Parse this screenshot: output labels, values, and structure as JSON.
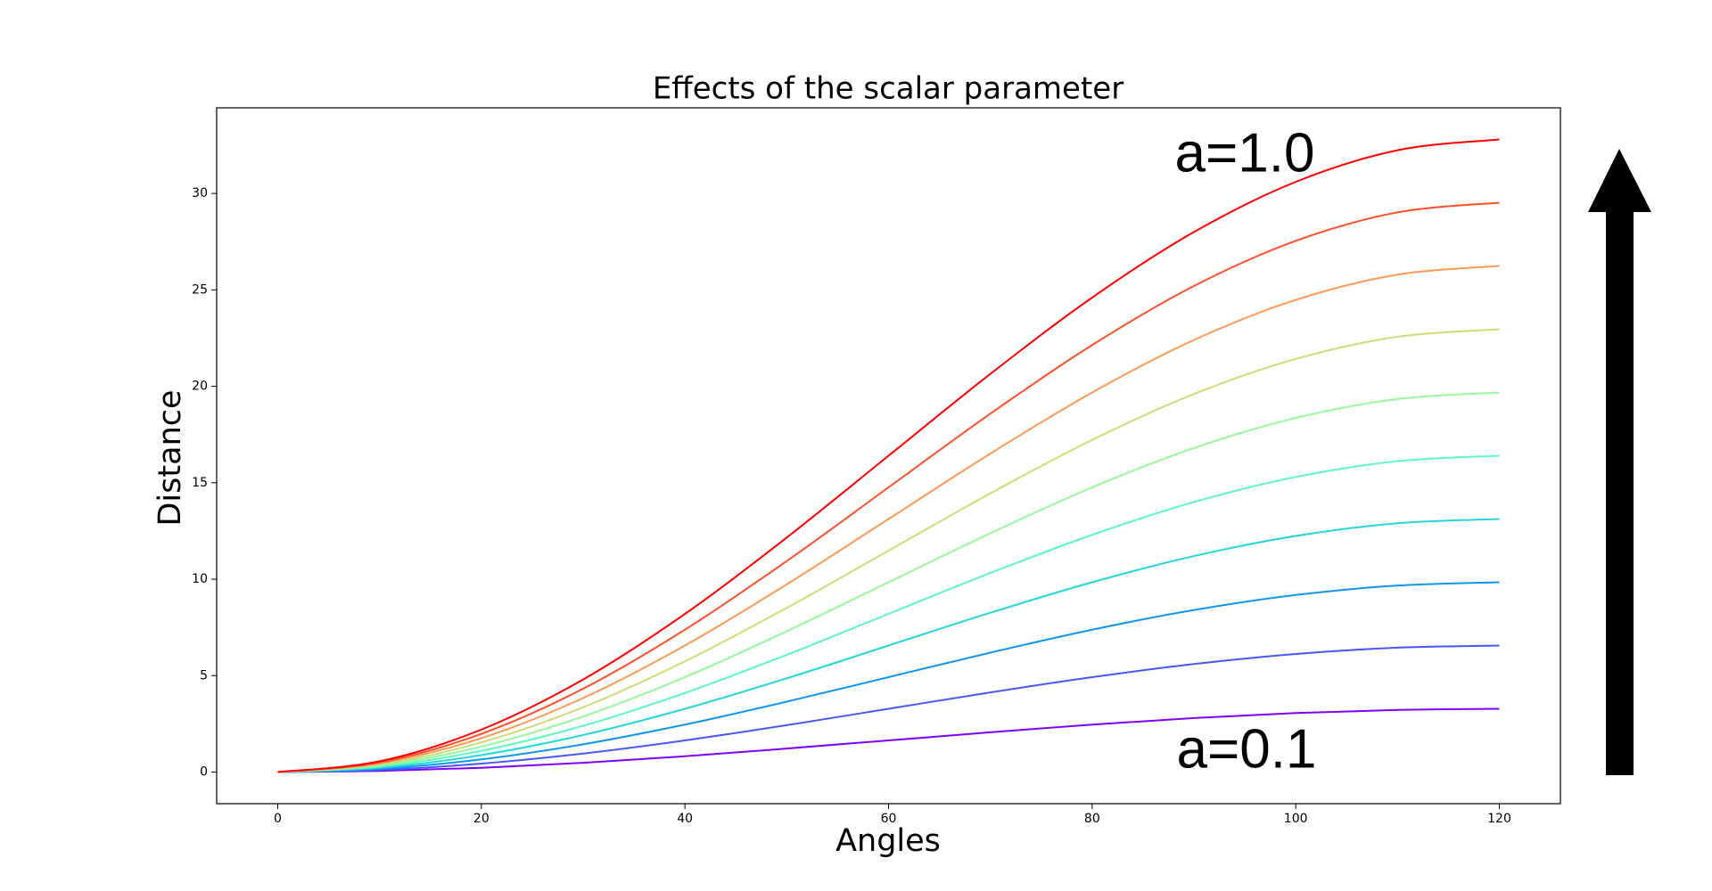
{
  "chart_data": {
    "type": "line",
    "title": "Effects of the scalar parameter",
    "xlabel": "Angles",
    "ylabel": "Distance",
    "x": [
      0,
      10,
      20,
      30,
      40,
      50,
      60,
      70,
      80,
      90,
      100,
      110,
      120
    ],
    "series": [
      {
        "color": "#8000ff",
        "values": [
          0,
          0.06,
          0.22,
          0.48,
          0.82,
          1.22,
          1.64,
          2.06,
          2.46,
          2.8,
          3.06,
          3.22,
          3.28
        ]
      },
      {
        "color": "#4856fb",
        "values": [
          0,
          0.11,
          0.44,
          0.96,
          1.64,
          2.43,
          3.28,
          4.13,
          4.92,
          5.6,
          6.12,
          6.45,
          6.56
        ]
      },
      {
        "color": "#1096f0",
        "values": [
          0,
          0.17,
          0.66,
          1.44,
          2.46,
          3.65,
          4.92,
          6.19,
          7.38,
          8.4,
          9.18,
          9.67,
          9.84
        ]
      },
      {
        "color": "#24d5d9",
        "values": [
          0,
          0.22,
          0.88,
          1.92,
          3.28,
          4.86,
          6.56,
          8.26,
          9.84,
          11.2,
          12.24,
          12.9,
          13.12
        ]
      },
      {
        "color": "#5cf8bd",
        "values": [
          0,
          0.28,
          1.1,
          2.4,
          4.1,
          6.08,
          8.2,
          10.32,
          12.3,
          14.0,
          15.3,
          16.12,
          16.4
        ]
      },
      {
        "color": "#96f99b",
        "values": [
          0,
          0.34,
          1.32,
          2.88,
          4.92,
          7.3,
          9.84,
          12.38,
          14.76,
          16.8,
          18.36,
          19.34,
          19.68
        ]
      },
      {
        "color": "#ccdd78",
        "values": [
          0,
          0.39,
          1.54,
          3.36,
          5.74,
          8.51,
          11.48,
          14.45,
          17.22,
          19.6,
          21.42,
          22.57,
          22.96
        ]
      },
      {
        "color": "#ff9a56",
        "values": [
          0,
          0.45,
          1.76,
          3.84,
          6.56,
          9.73,
          13.12,
          16.51,
          19.68,
          22.4,
          24.48,
          25.79,
          26.24
        ]
      },
      {
        "color": "#ff4f2a",
        "values": [
          0,
          0.5,
          1.98,
          4.32,
          7.38,
          10.94,
          14.76,
          18.58,
          22.14,
          25.2,
          27.54,
          29.02,
          29.52
        ]
      },
      {
        "color": "#ff0000",
        "values": [
          0,
          0.56,
          2.2,
          4.8,
          8.2,
          12.16,
          16.4,
          20.64,
          24.6,
          28.0,
          30.6,
          32.24,
          32.8
        ]
      }
    ],
    "xlim": [
      -6,
      126
    ],
    "xticks": [
      0,
      20,
      40,
      60,
      80,
      100,
      120
    ],
    "ylim": [
      -1.64,
      34.44
    ],
    "yticks": [
      0,
      5,
      10,
      15,
      20,
      25,
      30
    ],
    "grid": false,
    "annotations": [
      "a=1.0",
      "a=0.1"
    ]
  }
}
